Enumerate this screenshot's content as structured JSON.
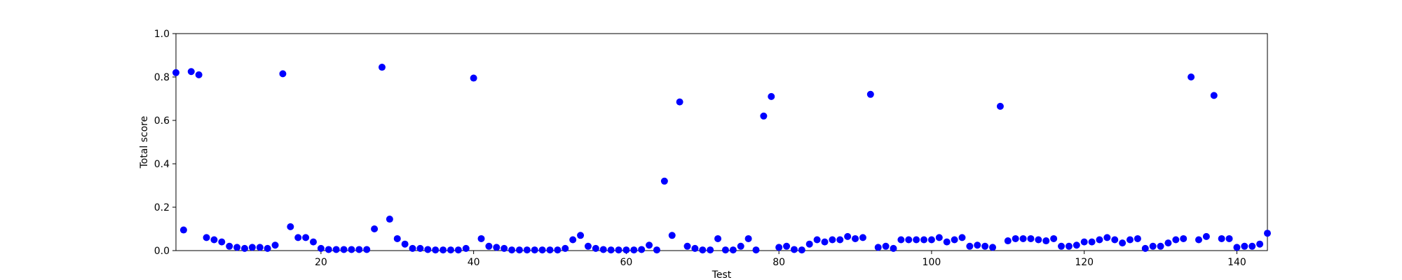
{
  "chart_data": {
    "type": "scatter",
    "xlabel": "Test",
    "ylabel": "Total score",
    "xlim": [
      1,
      144
    ],
    "ylim": [
      0,
      1.0
    ],
    "xticks": [
      20,
      40,
      60,
      80,
      100,
      120,
      140
    ],
    "yticks": [
      0.0,
      0.2,
      0.4,
      0.6,
      0.8,
      1.0
    ],
    "xtick_labels": [
      "20",
      "40",
      "60",
      "80",
      "100",
      "120",
      "140"
    ],
    "ytick_labels": [
      "0.0",
      "0.2",
      "0.4",
      "0.6",
      "0.8",
      "1.0"
    ],
    "grid": false,
    "marker_color": "#0000ff",
    "x": [
      1,
      2,
      3,
      4,
      5,
      6,
      7,
      8,
      9,
      10,
      11,
      12,
      13,
      14,
      15,
      16,
      17,
      18,
      19,
      20,
      21,
      22,
      23,
      24,
      25,
      26,
      27,
      28,
      29,
      30,
      31,
      32,
      33,
      34,
      35,
      36,
      37,
      38,
      39,
      40,
      41,
      42,
      43,
      44,
      45,
      46,
      47,
      48,
      49,
      50,
      51,
      52,
      53,
      54,
      55,
      56,
      57,
      58,
      59,
      60,
      61,
      62,
      63,
      64,
      65,
      66,
      67,
      68,
      69,
      70,
      71,
      72,
      73,
      74,
      75,
      76,
      77,
      78,
      79,
      80,
      81,
      82,
      83,
      84,
      85,
      86,
      87,
      88,
      89,
      90,
      91,
      92,
      93,
      94,
      95,
      96,
      97,
      98,
      99,
      100,
      101,
      102,
      103,
      104,
      105,
      106,
      107,
      108,
      109,
      110,
      111,
      112,
      113,
      114,
      115,
      116,
      117,
      118,
      119,
      120,
      121,
      122,
      123,
      124,
      125,
      126,
      127,
      128,
      129,
      130,
      131,
      132,
      133,
      134,
      135,
      136,
      137,
      138,
      139,
      140,
      141,
      142,
      143,
      144
    ],
    "y": [
      0.82,
      0.095,
      0.825,
      0.81,
      0.06,
      0.05,
      0.04,
      0.02,
      0.015,
      0.01,
      0.015,
      0.015,
      0.01,
      0.025,
      0.815,
      0.11,
      0.06,
      0.06,
      0.04,
      0.01,
      0.005,
      0.005,
      0.005,
      0.005,
      0.005,
      0.005,
      0.1,
      0.845,
      0.145,
      0.055,
      0.03,
      0.01,
      0.01,
      0.005,
      0.003,
      0.003,
      0.003,
      0.003,
      0.01,
      0.795,
      0.055,
      0.02,
      0.015,
      0.01,
      0.003,
      0.003,
      0.003,
      0.003,
      0.003,
      0.003,
      0.003,
      0.01,
      0.05,
      0.07,
      0.02,
      0.01,
      0.005,
      0.003,
      0.003,
      0.003,
      0.003,
      0.005,
      0.025,
      0.003,
      0.32,
      0.07,
      0.685,
      0.02,
      0.01,
      0.003,
      0.003,
      0.055,
      0.003,
      0.003,
      0.02,
      0.055,
      0.003,
      0.62,
      0.71,
      0.015,
      0.02,
      0.005,
      0.003,
      0.03,
      0.05,
      0.04,
      0.05,
      0.05,
      0.065,
      0.055,
      0.06,
      0.72,
      0.015,
      0.02,
      0.01,
      0.05,
      0.05,
      0.05,
      0.05,
      0.05,
      0.06,
      0.04,
      0.05,
      0.06,
      0.02,
      0.025,
      0.02,
      0.015,
      0.665,
      0.045,
      0.055,
      0.055,
      0.055,
      0.05,
      0.045,
      0.055,
      0.02,
      0.02,
      0.025,
      0.04,
      0.04,
      0.05,
      0.06,
      0.05,
      0.035,
      0.05,
      0.055,
      0.01,
      0.02,
      0.02,
      0.035,
      0.05,
      0.055,
      0.8,
      0.05,
      0.065,
      0.715,
      0.055,
      0.055,
      0.015,
      0.02,
      0.02,
      0.03,
      0.08
    ]
  }
}
